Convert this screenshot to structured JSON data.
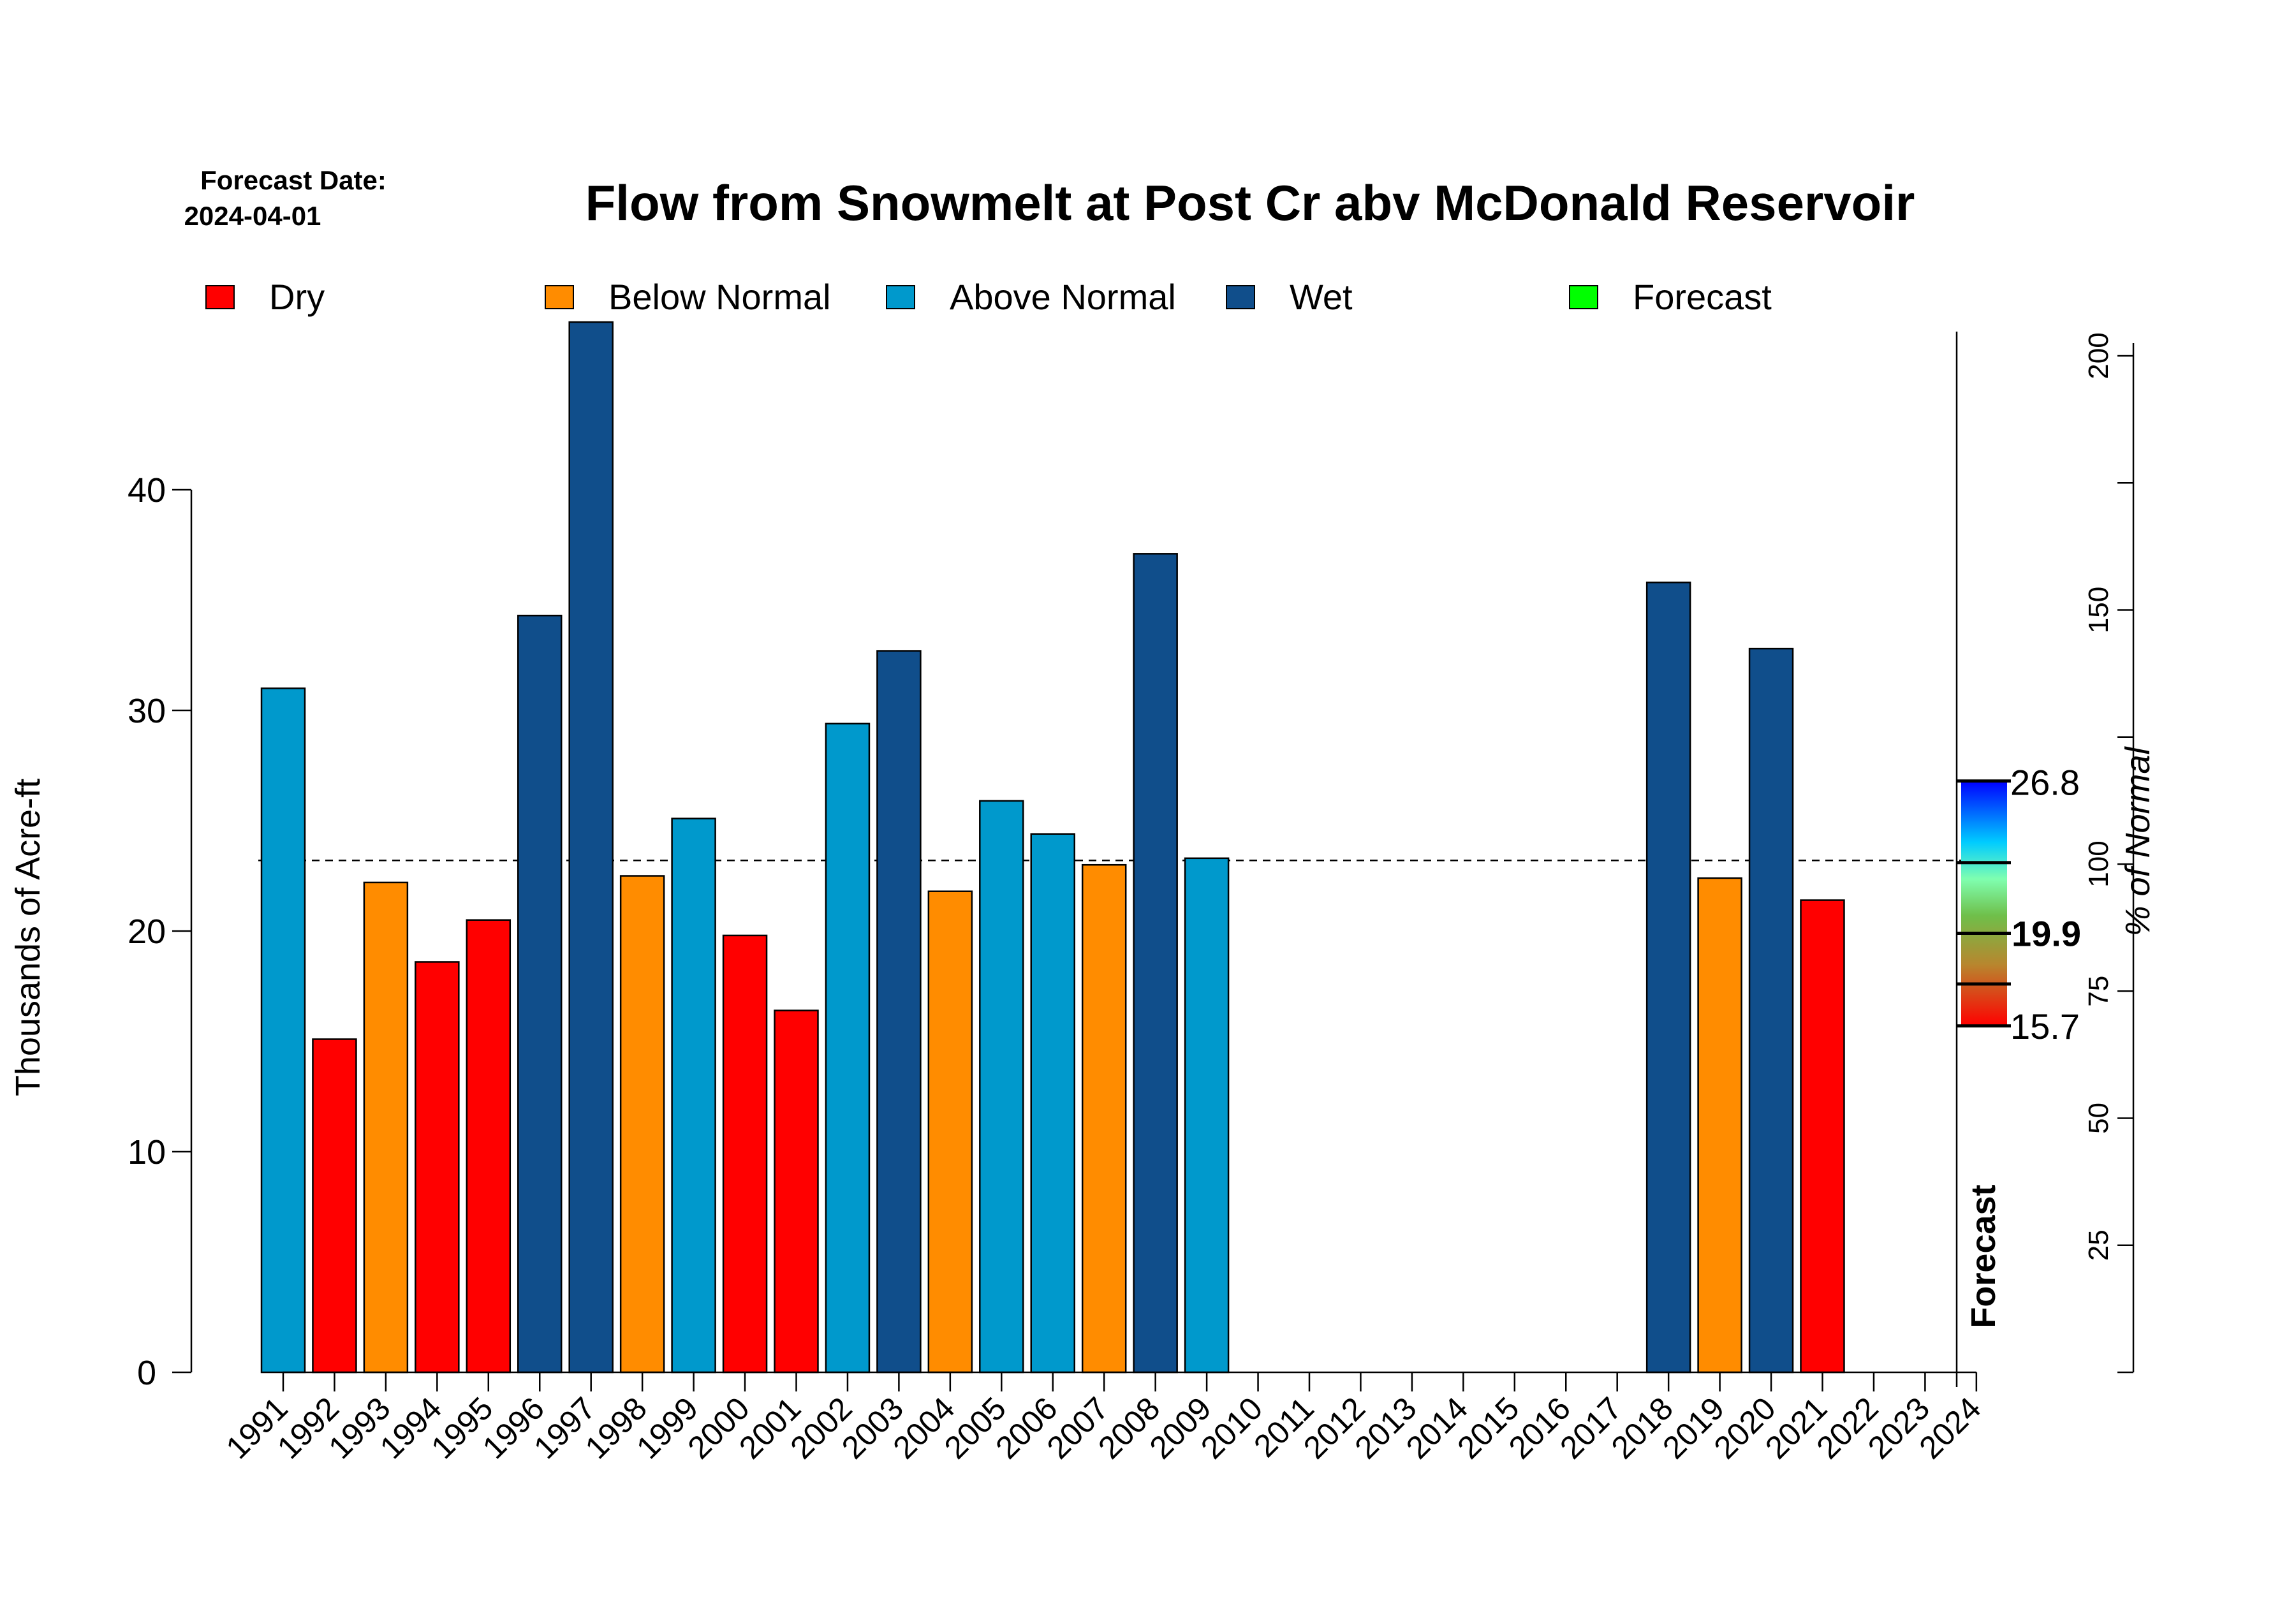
{
  "chart_data": {
    "type": "bar",
    "title": "Flow from Snowmelt at Post Cr abv McDonald Reservoir",
    "forecast_date_label": "Forecast Date:",
    "forecast_date": "2024-04-01",
    "ylabel": "Thousands of Acre-ft",
    "y2label": "% of Normal",
    "ylim": [
      0,
      47.5
    ],
    "yticks": [
      "0",
      "10",
      "20",
      "30",
      "40"
    ],
    "y2ticks": [
      {
        "label": "25",
        "pct": 25
      },
      {
        "label": "50",
        "pct": 50
      },
      {
        "label": "75",
        "pct": 75
      },
      {
        "label": "100",
        "pct": 100
      },
      {
        "label": "150",
        "pct": 150
      },
      {
        "label": "200",
        "pct": 200
      }
    ],
    "y2_minor_ticks": [
      125,
      175
    ],
    "normal_value": 23.2,
    "legend": [
      {
        "name": "Dry",
        "color": "#FF0000"
      },
      {
        "name": "Below Normal",
        "color": "#FF8C00"
      },
      {
        "name": "Above Normal",
        "color": "#0099CC"
      },
      {
        "name": "Wet",
        "color": "#104E8B"
      },
      {
        "name": "Forecast",
        "color": "#00FF00"
      }
    ],
    "categories": [
      "1991",
      "1992",
      "1993",
      "1994",
      "1995",
      "1996",
      "1997",
      "1998",
      "1999",
      "2000",
      "2001",
      "2002",
      "2003",
      "2004",
      "2005",
      "2006",
      "2007",
      "2008",
      "2009",
      "2010",
      "2011",
      "2012",
      "2013",
      "2014",
      "2015",
      "2016",
      "2017",
      "2018",
      "2019",
      "2020",
      "2021",
      "2022",
      "2023",
      "2024"
    ],
    "values": [
      31.0,
      15.1,
      22.2,
      18.6,
      20.5,
      34.3,
      47.6,
      22.5,
      25.1,
      19.8,
      16.4,
      29.4,
      32.7,
      21.8,
      25.9,
      24.4,
      23.0,
      37.1,
      23.3,
      null,
      null,
      null,
      null,
      null,
      null,
      null,
      null,
      35.8,
      22.4,
      32.8,
      21.4,
      null,
      null,
      null
    ],
    "classes": [
      "Above Normal",
      "Dry",
      "Below Normal",
      "Dry",
      "Dry",
      "Wet",
      "Wet",
      "Below Normal",
      "Above Normal",
      "Dry",
      "Dry",
      "Above Normal",
      "Wet",
      "Below Normal",
      "Above Normal",
      "Above Normal",
      "Below Normal",
      "Wet",
      "Above Normal",
      null,
      null,
      null,
      null,
      null,
      null,
      null,
      null,
      "Wet",
      "Below Normal",
      "Wet",
      "Dry",
      null,
      null,
      null
    ],
    "forecast": {
      "label": "Forecast",
      "max": 26.8,
      "max_label": "26.8",
      "median": 19.9,
      "median_label": "19.9",
      "min": 15.7,
      "min_label": "15.7",
      "q_upper": 23.1,
      "q_lower": 17.6
    }
  }
}
